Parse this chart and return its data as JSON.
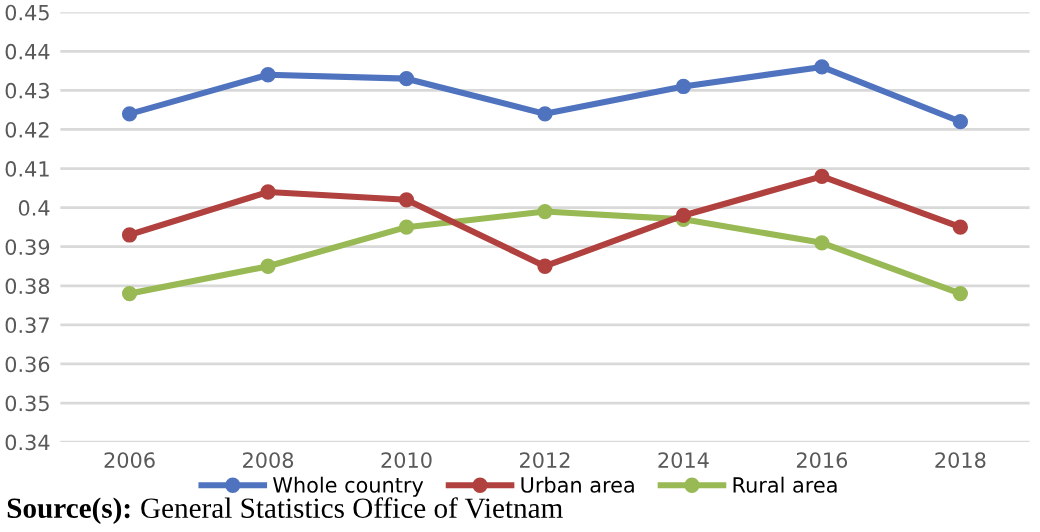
{
  "chart_data": {
    "type": "line",
    "categories": [
      "2006",
      "2008",
      "2010",
      "2012",
      "2014",
      "2016",
      "2018"
    ],
    "series": [
      {
        "name": "Whole country",
        "color": "#4f73be",
        "values": [
          0.424,
          0.434,
          0.433,
          0.424,
          0.431,
          0.436,
          0.422
        ]
      },
      {
        "name": "Urban area",
        "color": "#b0413e",
        "values": [
          0.393,
          0.404,
          0.402,
          0.385,
          0.398,
          0.408,
          0.395
        ]
      },
      {
        "name": "Rural area",
        "color": "#98b954",
        "values": [
          0.378,
          0.385,
          0.395,
          0.399,
          0.397,
          0.391,
          0.378
        ]
      }
    ],
    "ylim": [
      0.34,
      0.45
    ],
    "yticks": [
      0.34,
      0.35,
      0.36,
      0.37,
      0.38,
      0.39,
      0.4,
      0.41,
      0.42,
      0.43,
      0.44,
      0.45
    ],
    "grid": "y",
    "legend": "bottom",
    "marker": "circle",
    "line_style": "solid",
    "annotations": [
      "Source(s): General Statistics Office of Vietnam"
    ]
  }
}
